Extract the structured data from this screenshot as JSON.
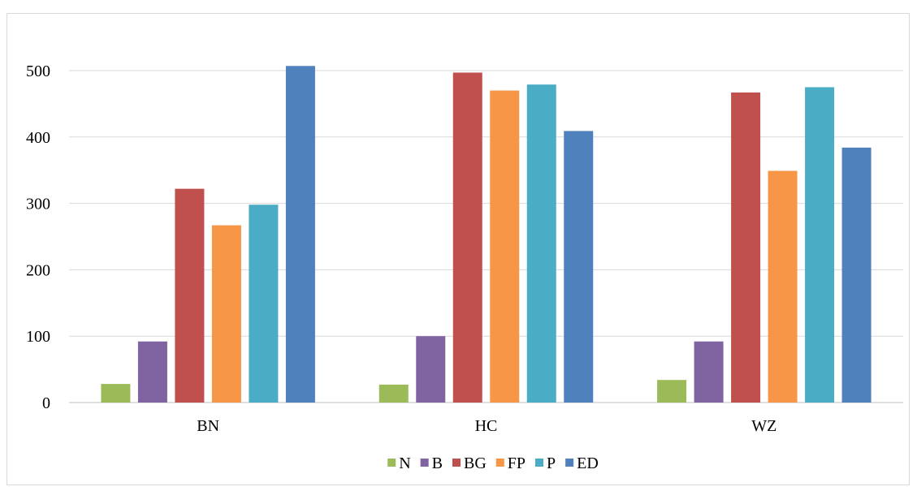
{
  "chart_data": {
    "type": "bar",
    "title": "",
    "xlabel": "",
    "ylabel": "",
    "categories": [
      "BN",
      "HC",
      "WZ"
    ],
    "ylim": [
      0,
      500
    ],
    "yticks": [
      0,
      100,
      200,
      300,
      400,
      500
    ],
    "grid": "horizontal",
    "legend_position": "bottom",
    "series": [
      {
        "name": "N",
        "color": "#9bbb59",
        "values": [
          28,
          27,
          34
        ]
      },
      {
        "name": "B",
        "color": "#8064a2",
        "values": [
          92,
          100,
          92
        ]
      },
      {
        "name": "BG",
        "color": "#c0504d",
        "values": [
          322,
          497,
          467
        ]
      },
      {
        "name": "FP",
        "color": "#f79646",
        "values": [
          267,
          470,
          349
        ]
      },
      {
        "name": "P",
        "color": "#4bacc6",
        "values": [
          298,
          479,
          475
        ]
      },
      {
        "name": "ED",
        "color": "#4f81bd",
        "values": [
          507,
          409,
          384
        ]
      }
    ]
  }
}
